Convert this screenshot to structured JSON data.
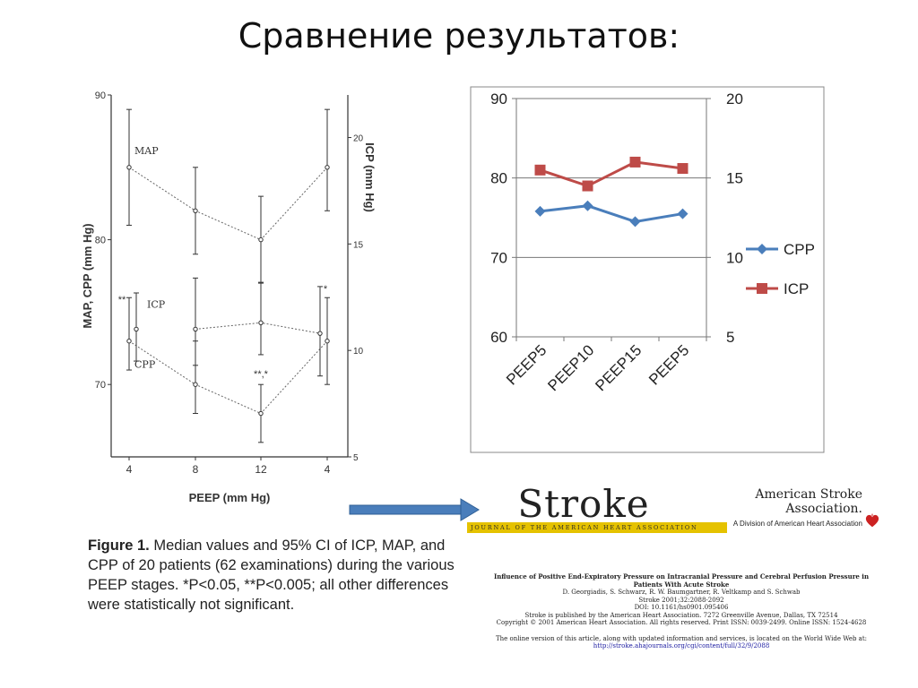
{
  "slide": {
    "title": "Сравнение результатов:"
  },
  "chart_data": [
    {
      "type": "line",
      "xlabel": "PEEP (mm Hg)",
      "ylabel": "MAP, CPP (mm Hg)",
      "y2label": "ICP (mm Hg)",
      "categories": [
        "4",
        "8",
        "12",
        "4"
      ],
      "ylim": [
        65,
        90
      ],
      "y2lim": [
        5,
        22
      ],
      "yticks": [
        "90",
        "80",
        "70"
      ],
      "y2ticks": [
        "20",
        "15",
        "10",
        "5"
      ],
      "series": [
        {
          "name": "MAP",
          "axis": "left",
          "values": [
            85,
            82,
            80,
            85
          ],
          "ci_low": [
            81,
            79,
            77,
            82
          ],
          "ci_high": [
            89,
            85,
            83,
            89
          ]
        },
        {
          "name": "CPP",
          "axis": "left",
          "values": [
            73,
            70,
            68,
            73
          ],
          "ci_low": [
            71,
            68,
            66,
            70
          ],
          "ci_high": [
            76,
            73,
            70,
            76
          ]
        },
        {
          "name": "ICP",
          "axis": "right",
          "values": [
            11,
            11,
            11.3,
            10.8
          ],
          "ci_low": [
            9.5,
            9.3,
            9.8,
            8.8
          ],
          "ci_high": [
            12.7,
            13.4,
            13.2,
            13
          ]
        }
      ],
      "annotations": [
        {
          "text": "**",
          "x_index": 0
        },
        {
          "text": "**,*",
          "x_index": 2
        },
        {
          "text": "*",
          "x_index": 3
        }
      ],
      "grid": false
    },
    {
      "type": "line",
      "categories": [
        "PEEP5",
        "PEEP10",
        "PEEP15",
        "PEEP5"
      ],
      "ylim": [
        60,
        90
      ],
      "yticks": [
        "90",
        "80",
        "70",
        "60"
      ],
      "y2lim": [
        5,
        20
      ],
      "y2ticks": [
        "20",
        "15",
        "10",
        "5"
      ],
      "series": [
        {
          "name": "CPP",
          "axis": "left",
          "color": "#4a7ebb",
          "marker": "diamond",
          "values": [
            75.8,
            76.5,
            74.5,
            75.5
          ]
        },
        {
          "name": "ICP",
          "axis": "left",
          "color": "#be4b48",
          "marker": "square",
          "values": [
            81,
            79,
            82,
            81.2
          ]
        }
      ],
      "legend": "right",
      "grid": true
    }
  ],
  "caption": {
    "figure_label": "Figure 1.",
    "text": " Median values and 95% CI of ICP, MAP, and CPP of 20 patients (62 examinations) during the various PEEP stages. *P<0.05, **P<0.005; all other differences were statistically not significant."
  },
  "journal": {
    "name": "Stroke",
    "banner": "JOURNAL OF THE AMERICAN HEART ASSOCIATION",
    "association": "American Stroke Association.",
    "division": "A Division of American Heart Association"
  },
  "article": {
    "title": "Influence of Positive End-Expiratory Pressure on Intracranial Pressure and Cerebral Perfusion Pressure in Patients With Acute Stroke",
    "authors": "D. Georgiadis, S. Schwarz, R. W. Baumgartner, R. Veltkamp and S. Schwab",
    "citation": "Stroke 2001;32:2088-2092",
    "doi": "DOI: 10.1161/hs0901.095406",
    "publisher": "Stroke is published by the American Heart Association. 7272 Greenville Avenue, Dallas, TX 72514",
    "copyright": "Copyright © 2001 American Heart Association. All rights reserved. Print ISSN: 0039-2499. Online ISSN: 1524-4628",
    "online_note": "The online version of this article, along with updated information and services, is located on the World Wide Web at:",
    "url": "http://stroke.ahajournals.org/cgi/content/full/32/9/2088"
  },
  "colors": {
    "cpp": "#4a7ebb",
    "icp": "#be4b48",
    "arrow": "#4a7ebb",
    "banner": "#e5c200",
    "heart": "#cc2222"
  }
}
